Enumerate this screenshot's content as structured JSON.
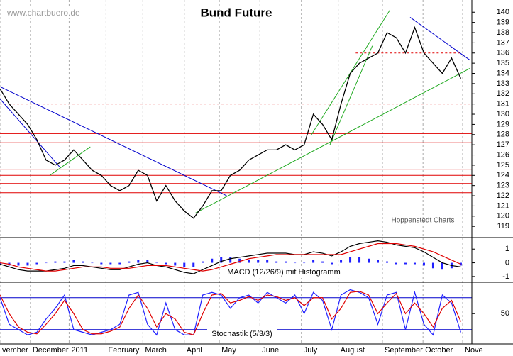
{
  "chart_data": [
    {
      "type": "line",
      "title": "Bund Future",
      "watermark": "www.chartbuero.de",
      "annotation": "Hoppenstedt Charts",
      "x": [
        0,
        1,
        2,
        3,
        4,
        5,
        6,
        7,
        8,
        9,
        10,
        11,
        12,
        13,
        14,
        15,
        16,
        17,
        18,
        19,
        20,
        21,
        22,
        23,
        24,
        25,
        26,
        27,
        28,
        29,
        30,
        31,
        32,
        33,
        34,
        35,
        36,
        37,
        38,
        39,
        40,
        41,
        42,
        43,
        44,
        45,
        46,
        47,
        48,
        49,
        50
      ],
      "values": [
        132.5,
        131,
        130,
        129,
        127.5,
        125.5,
        125,
        125.5,
        126.5,
        125.5,
        124.5,
        124,
        123,
        122.5,
        123,
        124.5,
        124,
        121.5,
        123,
        121.5,
        120.5,
        119.8,
        121,
        122.5,
        122.5,
        124,
        124.5,
        125.5,
        126,
        126.5,
        126.5,
        127,
        126.5,
        127,
        130,
        129,
        127.5,
        131,
        134,
        135,
        135.5,
        136,
        138,
        137.5,
        136,
        138.5,
        136,
        135,
        134,
        135.5,
        133.5
      ],
      "color": "#000000",
      "xlim": [
        0,
        51.2
      ],
      "ylim": [
        117.9,
        141.2
      ],
      "yticks": [
        119,
        120,
        121,
        122,
        123,
        124,
        125,
        126,
        127,
        128,
        129,
        130,
        131,
        132,
        133,
        134,
        135,
        136,
        137,
        138,
        139,
        140
      ],
      "levels": [
        {
          "value": 131,
          "style": "dashed"
        },
        {
          "value": 128.1,
          "style": "solid"
        },
        {
          "value": 127.2,
          "style": "solid"
        },
        {
          "value": 124.6,
          "style": "solid"
        },
        {
          "value": 124,
          "style": "solid"
        },
        {
          "value": 123.2,
          "style": "solid"
        },
        {
          "value": 122.3,
          "style": "solid"
        },
        {
          "value": 136,
          "style": "dashed",
          "x": [
            38.6,
            50
          ]
        }
      ],
      "level_color": "#e00000",
      "trendlines": [
        {
          "x": [
            0,
            24.6
          ],
          "y": [
            132.7,
            122
          ],
          "color": "#0000cc"
        },
        {
          "x": [
            0,
            6.5
          ],
          "y": [
            131.5,
            124.8
          ],
          "color": "#0000cc"
        },
        {
          "x": [
            44.5,
            51
          ],
          "y": [
            139.5,
            135.3
          ],
          "color": "#0000cc"
        },
        {
          "x": [
            5.4,
            9.8
          ],
          "y": [
            124,
            126.8
          ],
          "color": "#22aa22"
        },
        {
          "x": [
            21.2,
            51
          ],
          "y": [
            120.3,
            134.5
          ],
          "color": "#22aa22"
        },
        {
          "x": [
            33.8,
            42.3
          ],
          "y": [
            128,
            140.2
          ],
          "color": "#22aa22"
        },
        {
          "x": [
            35.8,
            40.4
          ],
          "y": [
            127,
            136.7
          ],
          "color": "#22aa22"
        }
      ]
    },
    {
      "type": "macd",
      "label": "MACD (12/26/9) mit Histogramm",
      "x": [
        0,
        1,
        2,
        3,
        4,
        5,
        6,
        7,
        8,
        9,
        10,
        11,
        12,
        13,
        14,
        15,
        16,
        17,
        18,
        19,
        20,
        21,
        22,
        23,
        24,
        25,
        26,
        27,
        28,
        29,
        30,
        31,
        32,
        33,
        34,
        35,
        36,
        37,
        38,
        39,
        40,
        41,
        42,
        43,
        44,
        45,
        46,
        47,
        48,
        49,
        50
      ],
      "series": [
        {
          "style": "bar",
          "color": "#2020ff",
          "values": [
            -0.1,
            -0.2,
            -0.2,
            -0.2,
            -0.1,
            0,
            0.1,
            0.1,
            0.2,
            0.1,
            0,
            -0.1,
            -0.1,
            -0.1,
            0.1,
            0.2,
            0.2,
            0,
            -0.1,
            -0.2,
            -0.3,
            -0.3,
            0.1,
            0.3,
            0.4,
            0.4,
            0.3,
            0.2,
            0.2,
            0.2,
            0.1,
            0.1,
            0,
            0,
            0.2,
            0.1,
            -0.1,
            0.2,
            0.4,
            0.4,
            0.3,
            0.2,
            0.1,
            -0.1,
            -0.1,
            -0.1,
            -0.2,
            -0.4,
            -0.5,
            -0.4,
            -0.2
          ]
        },
        {
          "style": "line",
          "color": "#000000",
          "values": [
            -0.1,
            -0.3,
            -0.5,
            -0.6,
            -0.6,
            -0.6,
            -0.5,
            -0.4,
            -0.2,
            -0.2,
            -0.3,
            -0.4,
            -0.5,
            -0.5,
            -0.3,
            -0.1,
            0,
            -0.2,
            -0.3,
            -0.5,
            -0.7,
            -0.8,
            -0.5,
            -0.2,
            0.1,
            0.3,
            0.4,
            0.5,
            0.6,
            0.7,
            0.7,
            0.7,
            0.6,
            0.6,
            0.8,
            0.7,
            0.5,
            0.8,
            1.2,
            1.4,
            1.5,
            1.6,
            1.5,
            1.3,
            1.2,
            1.1,
            0.8,
            0.4,
            0,
            -0.2,
            -0.3
          ]
        },
        {
          "style": "line",
          "color": "#e00000",
          "values": [
            0,
            -0.1,
            -0.3,
            -0.4,
            -0.5,
            -0.6,
            -0.6,
            -0.5,
            -0.4,
            -0.3,
            -0.3,
            -0.3,
            -0.4,
            -0.4,
            -0.4,
            -0.3,
            -0.2,
            -0.2,
            -0.2,
            -0.3,
            -0.4,
            -0.5,
            -0.6,
            -0.5,
            -0.3,
            -0.1,
            0.1,
            0.3,
            0.4,
            0.5,
            0.6,
            0.6,
            0.6,
            0.6,
            0.6,
            0.6,
            0.6,
            0.6,
            0.8,
            1,
            1.2,
            1.4,
            1.4,
            1.4,
            1.3,
            1.2,
            1,
            0.8,
            0.5,
            0.2,
            -0.1
          ]
        }
      ],
      "xlim": [
        0,
        51.2
      ],
      "ylim": [
        -1.42,
        1.84
      ],
      "yticks": [
        -1,
        0,
        1
      ]
    },
    {
      "type": "line",
      "label": "Stochastik (5/3/3)",
      "x": [
        0,
        1,
        2,
        3,
        4,
        5,
        6,
        7,
        8,
        9,
        10,
        11,
        12,
        13,
        14,
        15,
        16,
        17,
        18,
        19,
        20,
        21,
        22,
        23,
        24,
        25,
        26,
        27,
        28,
        29,
        30,
        31,
        32,
        33,
        34,
        35,
        36,
        37,
        38,
        39,
        40,
        41,
        42,
        43,
        44,
        45,
        46,
        47,
        48,
        49,
        50
      ],
      "series": [
        {
          "style": "line",
          "color": "#2020ff",
          "values": [
            80,
            30,
            20,
            10,
            15,
            40,
            60,
            85,
            20,
            15,
            10,
            15,
            20,
            30,
            85,
            90,
            30,
            10,
            70,
            20,
            10,
            10,
            85,
            90,
            85,
            60,
            80,
            85,
            70,
            90,
            80,
            70,
            85,
            50,
            90,
            75,
            20,
            85,
            95,
            90,
            80,
            30,
            85,
            90,
            20,
            90,
            30,
            10,
            85,
            70,
            15
          ]
        },
        {
          "style": "line",
          "color": "#e00000",
          "values": [
            85,
            50,
            25,
            15,
            12,
            30,
            50,
            75,
            50,
            20,
            12,
            12,
            17,
            25,
            60,
            85,
            60,
            25,
            50,
            40,
            15,
            10,
            50,
            85,
            88,
            70,
            75,
            82,
            75,
            85,
            82,
            75,
            80,
            65,
            80,
            80,
            40,
            60,
            90,
            92,
            85,
            50,
            70,
            88,
            50,
            70,
            50,
            25,
            60,
            75,
            35
          ]
        }
      ],
      "levels": [
        {
          "value": 20,
          "style": "solid"
        },
        {
          "value": 80,
          "style": "solid"
        }
      ],
      "level_color": "#0000cc",
      "xlim": [
        0,
        51.2
      ],
      "ylim": [
        -7,
        109
      ],
      "yticks": [
        50
      ],
      "xticks": [
        {
          "value": 0,
          "label": "vember"
        },
        {
          "value": 3.3,
          "label": "December"
        },
        {
          "value": 7.5,
          "label": "2011"
        },
        {
          "value": 11.5,
          "label": "February"
        },
        {
          "value": 15.5,
          "label": "March"
        },
        {
          "value": 20,
          "label": "April"
        },
        {
          "value": 23.8,
          "label": "May"
        },
        {
          "value": 28.2,
          "label": "June"
        },
        {
          "value": 32.7,
          "label": "July"
        },
        {
          "value": 36.7,
          "label": "August"
        },
        {
          "value": 41.5,
          "label": "September"
        },
        {
          "value": 45.9,
          "label": "October"
        },
        {
          "value": 50.2,
          "label": "Nove"
        }
      ]
    }
  ]
}
